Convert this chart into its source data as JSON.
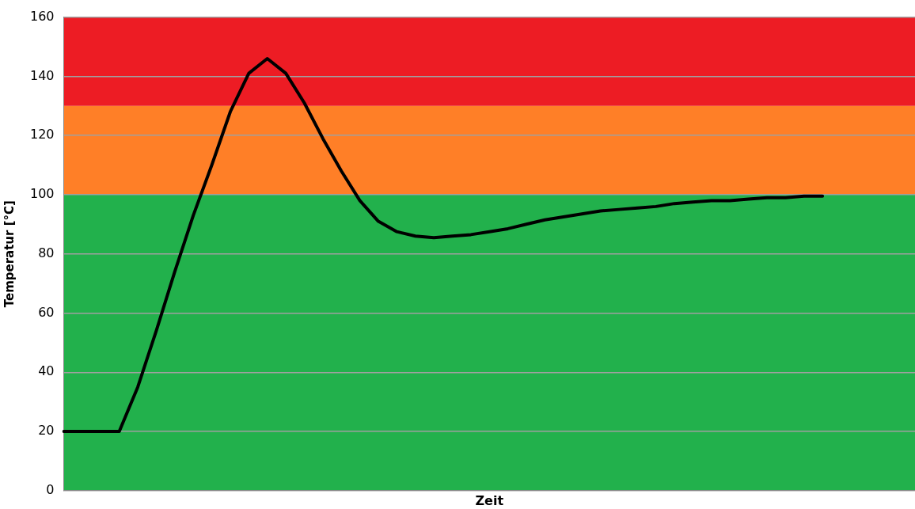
{
  "chart_data": {
    "type": "line",
    "xlabel": "Zeit",
    "ylabel": "Temperatur [°C]",
    "categories": [
      null,
      null,
      null,
      null,
      null,
      null,
      null,
      null,
      null,
      null,
      null,
      null,
      null,
      null,
      null,
      null,
      null,
      null,
      null,
      null,
      null,
      null,
      null,
      null,
      null,
      null,
      null,
      null,
      null,
      null,
      null,
      null,
      null,
      null,
      null,
      null,
      null,
      null,
      null,
      null,
      null,
      null,
      null,
      null,
      null,
      null,
      null
    ],
    "series": [
      {
        "color": "#000000",
        "values": [
          20,
          20,
          20,
          20,
          35,
          54,
          74,
          93,
          110,
          128,
          141,
          146,
          141,
          131,
          119,
          108,
          98,
          91,
          87.5,
          86,
          85.5,
          86,
          86.5,
          87.5,
          88.5,
          90,
          91.5,
          92.5,
          93.5,
          94.5,
          95,
          95.5,
          96,
          97,
          97.5,
          98,
          98,
          98.5,
          99,
          99,
          99.5,
          99.5,
          null,
          null,
          null,
          null,
          null
        ]
      }
    ],
    "ylim": [
      0,
      160
    ],
    "yticks": [
      0,
      20,
      40,
      60,
      80,
      100,
      120,
      140,
      160
    ],
    "bands": [
      {
        "axis": "y",
        "from": 0,
        "to": 100,
        "color": "#22b14c"
      },
      {
        "axis": "y",
        "from": 100,
        "to": 130,
        "color": "#ff7f27"
      },
      {
        "axis": "y",
        "from": 130,
        "to": 160,
        "color": "#ed1c24"
      }
    ],
    "grid": "y",
    "tick_labels": "y",
    "marker": "none",
    "line_style": "solid"
  }
}
